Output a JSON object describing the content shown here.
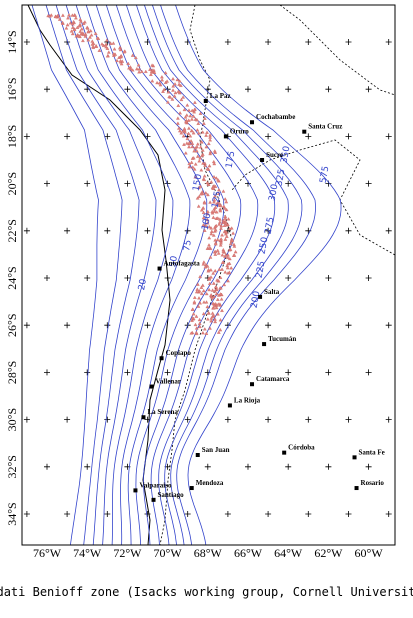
{
  "map": {
    "latitude_labels": [
      "14°S",
      "16°S",
      "18°S",
      "20°S",
      "22°S",
      "24°S",
      "26°S",
      "28°S",
      "30°S",
      "32°S",
      "34°S"
    ],
    "longitude_labels": [
      "76°W",
      "74°W",
      "72°W",
      "70°W",
      "68°W",
      "66°W",
      "64°W",
      "62°W",
      "60°W"
    ],
    "cities": [
      "La Paz",
      "Cochabambe",
      "Oruro",
      "Santa Cruz",
      "Sucre",
      "Antofagasta",
      "Salta",
      "Tucumán",
      "Copiapo",
      "Catamarca",
      "Vallenar",
      "La Rioja",
      "La Serena",
      "San Juan",
      "Córdoba",
      "Santa Fe",
      "Valparaiso",
      "Mendoza",
      "Santiago",
      "Rosario"
    ],
    "contour_labels": [
      "20",
      "50",
      "75",
      "100",
      "125",
      "150",
      "175",
      "200",
      "225",
      "250",
      "275",
      "300",
      "325",
      "350",
      "575"
    ]
  },
  "caption": "Wadati Benioff zone (Isacks working group, Cornell University)"
}
